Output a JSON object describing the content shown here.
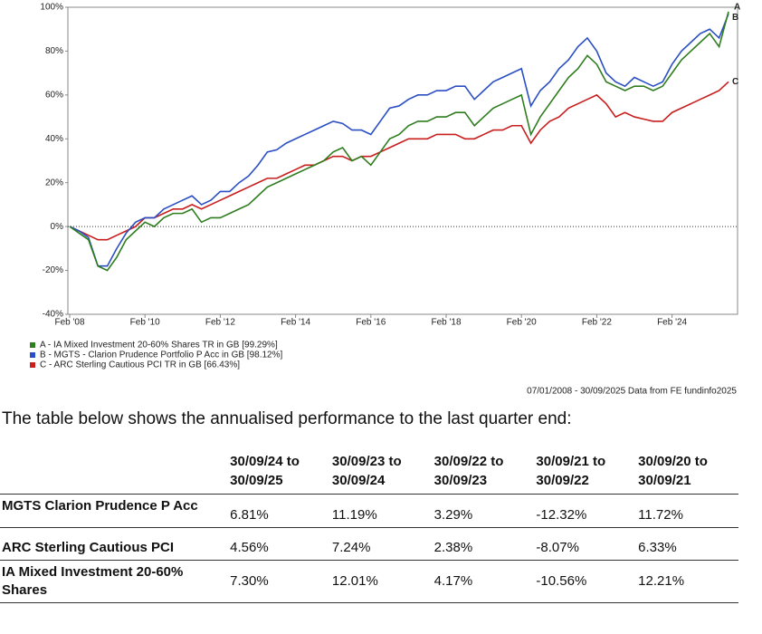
{
  "chart_data": {
    "type": "line",
    "categories": [
      "Feb '08",
      null,
      null,
      null,
      null,
      null,
      null,
      null,
      "Feb '10",
      null,
      null,
      null,
      null,
      null,
      null,
      null,
      "Feb '12",
      null,
      null,
      null,
      null,
      null,
      null,
      null,
      "Feb '14",
      null,
      null,
      null,
      null,
      null,
      null,
      null,
      "Feb '16",
      null,
      null,
      null,
      null,
      null,
      null,
      null,
      "Feb '18",
      null,
      null,
      null,
      null,
      null,
      null,
      null,
      "Feb '20",
      null,
      null,
      null,
      null,
      null,
      null,
      null,
      "Feb '22",
      null,
      null,
      null,
      null,
      null,
      null,
      null,
      "Feb '24",
      null,
      null,
      null,
      null,
      null,
      null
    ],
    "series": [
      {
        "name": "A - IA Mixed Investment 20-60% Shares TR in GB [99.29%]",
        "end_label": "A",
        "color": "#2e7d1e",
        "values": [
          0,
          -3,
          -6,
          -18,
          -20,
          -14,
          -6,
          -2,
          2,
          0,
          4,
          6,
          6,
          8,
          2,
          4,
          4,
          6,
          8,
          10,
          14,
          18,
          20,
          22,
          24,
          26,
          28,
          30,
          34,
          36,
          30,
          32,
          28,
          34,
          40,
          42,
          46,
          48,
          48,
          50,
          50,
          52,
          52,
          46,
          50,
          54,
          56,
          58,
          60,
          42,
          50,
          56,
          62,
          68,
          72,
          78,
          74,
          66,
          64,
          62,
          64,
          64,
          62,
          64,
          70,
          76,
          80,
          84,
          88,
          82,
          98
        ]
      },
      {
        "name": "B - MGTS - Clarion Prudence Portfolio P Acc in GB [98.12%]",
        "end_label": "B",
        "color": "#2a4fc4",
        "values": [
          0,
          -2,
          -5,
          -18,
          -18,
          -10,
          -3,
          2,
          4,
          4,
          8,
          10,
          12,
          14,
          10,
          12,
          16,
          16,
          20,
          23,
          28,
          34,
          35,
          38,
          40,
          42,
          44,
          46,
          48,
          47,
          44,
          44,
          42,
          48,
          54,
          55,
          58,
          60,
          60,
          62,
          62,
          64,
          64,
          58,
          62,
          66,
          68,
          70,
          72,
          55,
          62,
          66,
          72,
          76,
          82,
          86,
          80,
          70,
          66,
          64,
          68,
          66,
          64,
          66,
          74,
          80,
          84,
          88,
          90,
          86,
          97
        ]
      },
      {
        "name": "C - ARC Sterling Cautious PCI TR in GB [66.43%]",
        "end_label": "C",
        "color": "#c81e1e",
        "values": [
          0,
          -2,
          -4,
          -6,
          -6,
          -4,
          -2,
          0,
          4,
          4,
          6,
          8,
          8,
          10,
          8,
          10,
          12,
          14,
          16,
          18,
          20,
          22,
          22,
          24,
          26,
          28,
          28,
          30,
          32,
          32,
          30,
          32,
          32,
          34,
          36,
          38,
          40,
          40,
          40,
          42,
          42,
          42,
          40,
          40,
          42,
          44,
          44,
          46,
          46,
          38,
          44,
          48,
          50,
          54,
          56,
          58,
          60,
          56,
          50,
          52,
          50,
          49,
          48,
          48,
          52,
          54,
          56,
          58,
          60,
          62,
          66
        ]
      }
    ],
    "ylim": [
      -40,
      100
    ],
    "yticks": [
      {
        "value": -40,
        "label": "-40%"
      },
      {
        "value": -20,
        "label": "-20%"
      },
      {
        "value": 0,
        "label": "0%"
      },
      {
        "value": 20,
        "label": "20%"
      },
      {
        "value": 40,
        "label": "40%"
      },
      {
        "value": 60,
        "label": "60%"
      },
      {
        "value": 80,
        "label": "80%"
      },
      {
        "value": 100,
        "label": "100%"
      }
    ],
    "zero_line": true,
    "source": "07/01/2008 - 30/09/2025 Data from FE fundinfo2025"
  },
  "intro": "The table below shows the annualised performance to the last quarter end:",
  "table": {
    "header": [
      "30/09/24 to 30/09/25",
      "30/09/23 to 30/09/24",
      "30/09/22 to 30/09/23",
      "30/09/21 to 30/09/22",
      "30/09/20 to 30/09/21"
    ],
    "rows": [
      [
        "MGTS Clarion Prudence P Acc",
        "6.81%",
        "11.19%",
        "3.29%",
        "-12.32%",
        "11.72%"
      ],
      [
        "ARC Sterling Cautious PCI",
        "4.56%",
        "7.24%",
        "2.38%",
        "-8.07%",
        "6.33%"
      ],
      [
        "IA Mixed Investment 20-60% Shares",
        "7.30%",
        "12.01%",
        "4.17%",
        "-10.56%",
        "12.21%"
      ]
    ]
  }
}
